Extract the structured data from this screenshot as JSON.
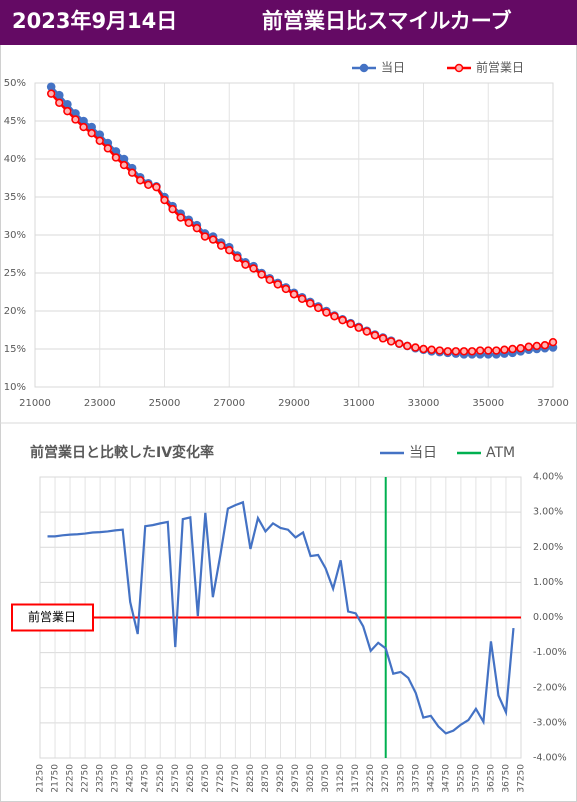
{
  "header": {
    "date": "2023年9月14日",
    "title": "前営業日比スマイルカーブ"
  },
  "chart_data": [
    {
      "type": "line",
      "markers": true,
      "grid": true,
      "y_axis_side": "left",
      "x": [
        21500,
        21750,
        22000,
        22250,
        22500,
        22750,
        23000,
        23250,
        23500,
        23750,
        24000,
        24250,
        24500,
        24750,
        25000,
        25250,
        25500,
        25750,
        26000,
        26250,
        26500,
        26750,
        27000,
        27250,
        27500,
        27750,
        28000,
        28250,
        28500,
        28750,
        29000,
        29250,
        29500,
        29750,
        30000,
        30250,
        30500,
        30750,
        31000,
        31250,
        31500,
        31750,
        32000,
        32250,
        32500,
        32750,
        33000,
        33250,
        33500,
        33750,
        34000,
        34250,
        34500,
        34750,
        35000,
        35250,
        35500,
        35750,
        36000,
        36250,
        36500,
        36750,
        37000
      ],
      "series": [
        {
          "name": "当日",
          "color": "#4472c4",
          "values": [
            49.5,
            48.4,
            47.2,
            46.0,
            45.0,
            44.2,
            43.2,
            42.1,
            41.0,
            40.0,
            38.8,
            37.6,
            36.8,
            36.4,
            35.0,
            33.8,
            32.8,
            32.0,
            31.3,
            30.2,
            29.8,
            29.0,
            28.4,
            27.3,
            26.4,
            25.9,
            25.0,
            24.3,
            23.7,
            23.1,
            22.4,
            21.8,
            21.2,
            20.6,
            20.0,
            19.4,
            18.9,
            18.4,
            17.9,
            17.4,
            16.9,
            16.5,
            16.1,
            15.7,
            15.4,
            15.1,
            14.9,
            14.7,
            14.6,
            14.5,
            14.4,
            14.3,
            14.3,
            14.3,
            14.3,
            14.3,
            14.4,
            14.5,
            14.7,
            14.9,
            15.0,
            15.1,
            15.2
          ]
        },
        {
          "name": "前営業日",
          "color": "#ff0000",
          "values": [
            48.6,
            47.4,
            46.3,
            45.2,
            44.2,
            43.4,
            42.4,
            41.4,
            40.2,
            39.2,
            38.2,
            37.2,
            36.6,
            36.3,
            34.6,
            33.4,
            32.3,
            31.6,
            30.9,
            29.8,
            29.4,
            28.6,
            28.0,
            27.0,
            26.1,
            25.6,
            24.8,
            24.1,
            23.5,
            22.9,
            22.2,
            21.6,
            21.0,
            20.4,
            19.8,
            19.3,
            18.8,
            18.3,
            17.8,
            17.3,
            16.8,
            16.4,
            16.0,
            15.7,
            15.4,
            15.2,
            15.0,
            14.9,
            14.8,
            14.7,
            14.7,
            14.7,
            14.7,
            14.8,
            14.8,
            14.8,
            14.9,
            15.0,
            15.1,
            15.3,
            15.4,
            15.5,
            15.9
          ]
        }
      ],
      "xlim": [
        21000,
        37000
      ],
      "xticks": [
        21000,
        23000,
        25000,
        27000,
        29000,
        31000,
        33000,
        35000,
        37000
      ],
      "ylim": [
        10,
        50
      ],
      "yticks": [
        {
          "value": 10,
          "label": "10%"
        },
        {
          "value": 15,
          "label": "15%"
        },
        {
          "value": 20,
          "label": "20%"
        },
        {
          "value": 25,
          "label": "25%"
        },
        {
          "value": 30,
          "label": "30%"
        },
        {
          "value": 35,
          "label": "35%"
        },
        {
          "value": 40,
          "label": "40%"
        },
        {
          "value": 45,
          "label": "45%"
        },
        {
          "value": 50,
          "label": "50%"
        }
      ]
    },
    {
      "type": "line",
      "markers": false,
      "grid": true,
      "y_axis_side": "right",
      "title": "前営業日と比較したIV変化率",
      "x": [
        21500,
        21750,
        22000,
        22250,
        22500,
        22750,
        23000,
        23250,
        23500,
        23750,
        24000,
        24250,
        24500,
        24750,
        25000,
        25250,
        25500,
        25750,
        26000,
        26250,
        26500,
        26750,
        27000,
        27250,
        27500,
        27750,
        28000,
        28250,
        28500,
        28750,
        29000,
        29250,
        29500,
        29750,
        30000,
        30250,
        30500,
        30750,
        31000,
        31250,
        31500,
        31750,
        32000,
        32250,
        32500,
        32750,
        33000,
        33250,
        33500,
        33750,
        34000,
        34250,
        34500,
        34750,
        35000,
        35250,
        35500,
        35750,
        36000,
        36250,
        36500,
        36750,
        37000
      ],
      "series": [
        {
          "name": "当日",
          "color": "#4472c4",
          "values": [
            2.31,
            2.31,
            2.34,
            2.36,
            2.37,
            2.39,
            2.42,
            2.43,
            2.45,
            2.48,
            2.5,
            0.44,
            -0.47,
            2.6,
            2.63,
            2.68,
            2.72,
            -0.84,
            2.8,
            2.85,
            0.04,
            2.98,
            0.58,
            1.78,
            3.1,
            3.2,
            3.28,
            1.95,
            2.83,
            2.45,
            2.68,
            2.55,
            2.5,
            2.28,
            2.42,
            1.75,
            1.78,
            1.4,
            0.82,
            1.63,
            0.17,
            0.12,
            -0.25,
            -0.95,
            -0.72,
            -0.88,
            -1.6,
            -1.55,
            -1.72,
            -2.15,
            -2.85,
            -2.8,
            -3.1,
            -3.3,
            -3.22,
            -3.05,
            -2.92,
            -2.6,
            -2.97,
            -0.68,
            -2.22,
            -2.7,
            -0.3
          ]
        }
      ],
      "atm": {
        "name": "ATM",
        "color": "#00b050",
        "x": 32750
      },
      "baseline": {
        "label": "前営業日",
        "value": 0,
        "color": "#ff0000"
      },
      "xlim": [
        21250,
        37250
      ],
      "xticks": [
        21250,
        21750,
        22250,
        22750,
        23250,
        23750,
        24250,
        24750,
        25250,
        25750,
        26250,
        26750,
        27250,
        27750,
        28250,
        28750,
        29250,
        29750,
        30250,
        30750,
        31250,
        31750,
        32250,
        32750,
        33250,
        33750,
        34250,
        34750,
        35250,
        35750,
        36250,
        36750,
        37250
      ],
      "ylim": [
        -4,
        4
      ],
      "yticks": [
        {
          "value": -4,
          "label": "-4.00%"
        },
        {
          "value": -3,
          "label": "-3.00%"
        },
        {
          "value": -2,
          "label": "-2.00%"
        },
        {
          "value": -1,
          "label": "-1.00%"
        },
        {
          "value": 0,
          "label": "0.00%"
        },
        {
          "value": 1,
          "label": "1.00%"
        },
        {
          "value": 2,
          "label": "2.00%"
        },
        {
          "value": 3,
          "label": "3.00%"
        },
        {
          "value": 4,
          "label": "4.00%"
        }
      ]
    }
  ]
}
